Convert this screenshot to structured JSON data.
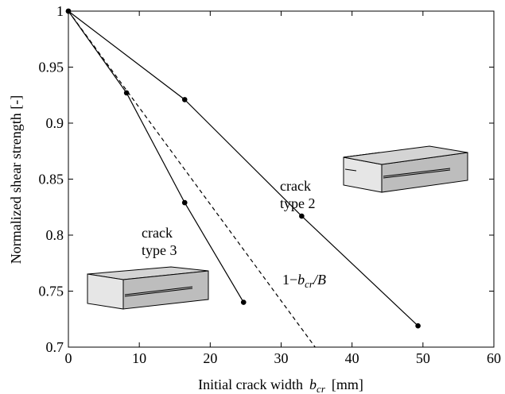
{
  "chart_data": {
    "type": "line",
    "xlabel": {
      "text": "Initial crack width",
      "var": "b",
      "sub": "cr",
      "unit": "[mm]"
    },
    "ylabel": "Normalized shear strength  [-]",
    "xlim": [
      0,
      60
    ],
    "xticks": [
      0,
      10,
      20,
      30,
      40,
      50,
      60
    ],
    "ylim": [
      0.7,
      1
    ],
    "yticks": [
      0.7,
      0.75,
      0.8,
      0.85,
      0.9,
      0.95,
      1
    ],
    "series": [
      {
        "color": "#000000",
        "dash": false,
        "markers": true,
        "x": [
          0,
          16.4,
          32.9,
          49.3
        ],
        "values": [
          1,
          0.921,
          0.817,
          0.719
        ]
      },
      {
        "color": "#000000",
        "dash": false,
        "markers": true,
        "x": [
          0,
          8.2,
          16.4,
          24.7
        ],
        "values": [
          1,
          0.927,
          0.829,
          0.74
        ]
      },
      {
        "color": "#000000",
        "dash": true,
        "markers": false,
        "x": [
          0,
          34.8
        ],
        "values": [
          1,
          0.7
        ]
      }
    ],
    "annotations": {
      "type2": [
        "crack",
        "type 2"
      ],
      "type3": [
        "crack",
        "type 3"
      ],
      "formula": {
        "pre": "1−",
        "var": "b",
        "sub": "cr",
        "post": "/B"
      }
    }
  }
}
